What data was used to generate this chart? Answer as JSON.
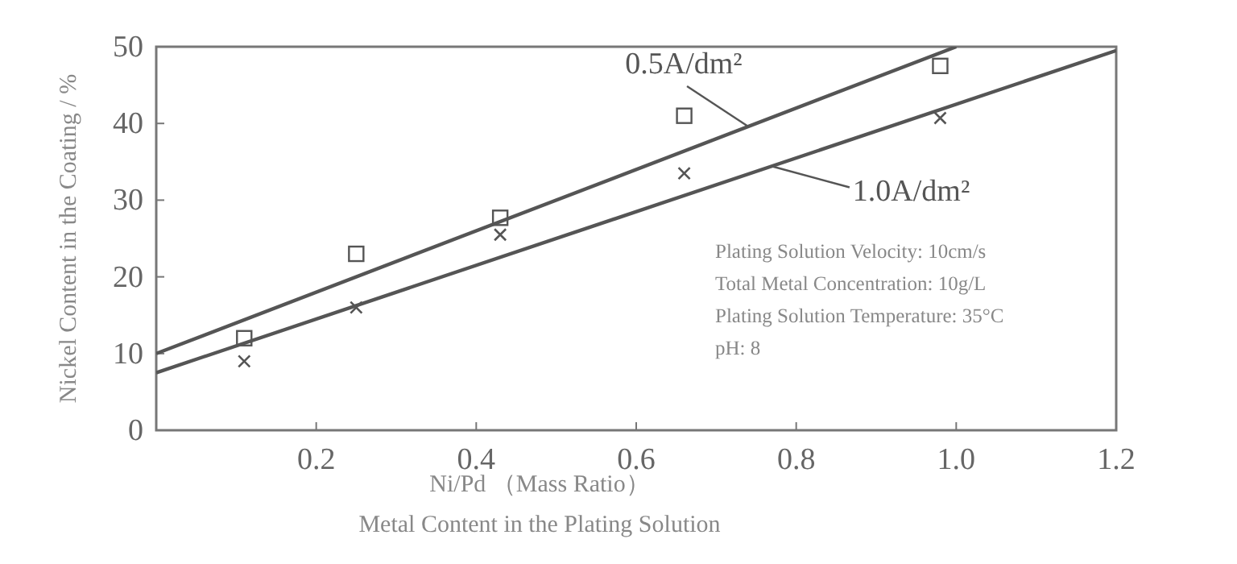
{
  "chart_data": {
    "type": "scatter",
    "xlabel": "Ni/Pd （Mass Ratio）\nMetal Content in the Plating Solution",
    "ylabel": "Nickel Content in the Coating / %",
    "series": [
      {
        "marker": "square",
        "color": "#555555",
        "x": [
          0.11,
          0.25,
          0.43,
          0.66,
          0.98
        ],
        "values": [
          12,
          23,
          27.7,
          41,
          47.5
        ]
      },
      {
        "marker": "cross",
        "color": "#555555",
        "x": [
          0.11,
          0.25,
          0.43,
          0.66,
          0.98
        ],
        "values": [
          9,
          16,
          25.5,
          33.5,
          40.7
        ]
      },
      {
        "type": "line",
        "color": "#555555",
        "x": [
          0,
          1.0
        ],
        "values": [
          10,
          50
        ]
      },
      {
        "type": "line",
        "color": "#555555",
        "x": [
          0,
          1.2
        ],
        "values": [
          7.5,
          49.5
        ]
      }
    ],
    "annotations": [
      {
        "text": "0.5A/dm²",
        "x": 0.74,
        "y": 39.6
      },
      {
        "text": "1.0A/dm²",
        "x": 0.77,
        "y": 34.4
      },
      "Plating Solution Velocity: 10cm/s\nTotal Metal Concentration: 10g/L\nPlating Solution Temperature: 35°C\npH: 8"
    ],
    "xlim": [
      0,
      1.2
    ],
    "xticks": [
      0.2,
      0.4,
      0.6,
      0.8,
      {
        "value": 1.0,
        "label": "1.0"
      },
      1.2
    ],
    "ylim": [
      0,
      50
    ],
    "yticks": [
      0,
      10,
      20,
      30,
      40,
      50
    ],
    "grid": false
  }
}
